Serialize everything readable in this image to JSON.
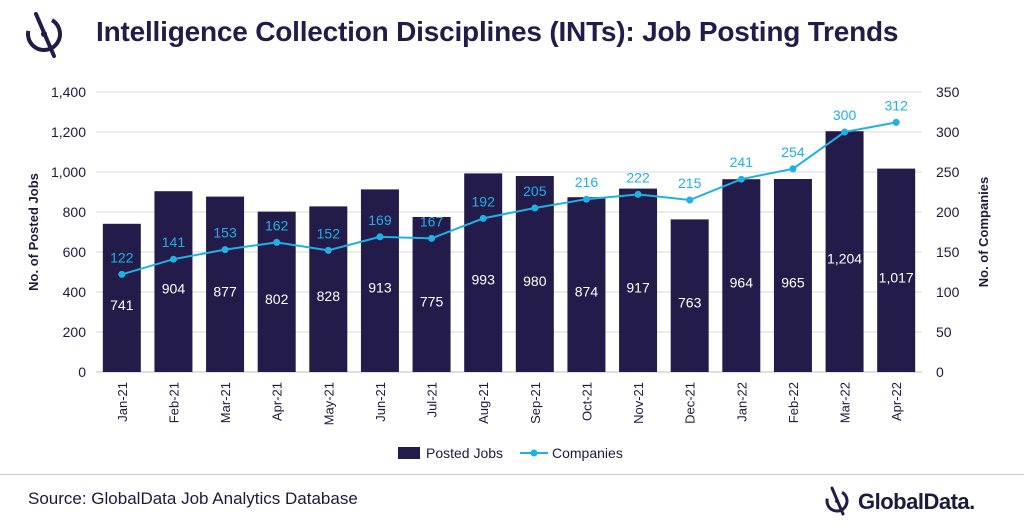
{
  "header": {
    "title": "Intelligence Collection Disciplines (INTs): Job Posting Trends",
    "logo_icon": "globaldata-logo-icon"
  },
  "footer": {
    "source": "Source: GlobalData Job Analytics Database",
    "brand": "GlobalData."
  },
  "colors": {
    "bar": "#231c4a",
    "line": "#1fb1e6",
    "text": "#1e1a3c",
    "grid": "#d9d9d9"
  },
  "chart_data": {
    "type": "bar",
    "title": "Intelligence Collection Disciplines (INTs): Job Posting Trends",
    "categories": [
      "Jan-21",
      "Feb-21",
      "Mar-21",
      "Apr-21",
      "May-21",
      "Jun-21",
      "Jul-21",
      "Aug-21",
      "Sep-21",
      "Oct-21",
      "Nov-21",
      "Dec-21",
      "Jan-22",
      "Feb-22",
      "Mar-22",
      "Apr-22"
    ],
    "series": [
      {
        "name": "Posted Jobs",
        "type": "bar",
        "axis": "left",
        "values": [
          741,
          904,
          877,
          802,
          828,
          913,
          775,
          993,
          980,
          874,
          917,
          763,
          964,
          965,
          1204,
          1017
        ],
        "labels": [
          "741",
          "904",
          "877",
          "802",
          "828",
          "913",
          "775",
          "993",
          "980",
          "874",
          "917",
          "763",
          "964",
          "965",
          "1,204",
          "1,017"
        ]
      },
      {
        "name": "Companies",
        "type": "line",
        "axis": "right",
        "values": [
          122,
          141,
          153,
          162,
          152,
          169,
          167,
          192,
          205,
          216,
          222,
          215,
          241,
          254,
          300,
          312
        ],
        "labels": [
          "122",
          "141",
          "153",
          "162",
          "152",
          "169",
          "167",
          "192",
          "205",
          "216",
          "222",
          "215",
          "241",
          "254",
          "300",
          "312"
        ]
      }
    ],
    "ylabel": "No. of Posted Jobs",
    "y2label": "No. of Companies",
    "ylim": [
      0,
      1400
    ],
    "y2lim": [
      0,
      350
    ],
    "yticks": [
      "0",
      "200",
      "400",
      "600",
      "800",
      "1,000",
      "1,200",
      "1,400"
    ],
    "y2ticks": [
      "0",
      "50",
      "100",
      "150",
      "200",
      "250",
      "300",
      "350"
    ],
    "grid": true,
    "legend_position": "bottom"
  }
}
